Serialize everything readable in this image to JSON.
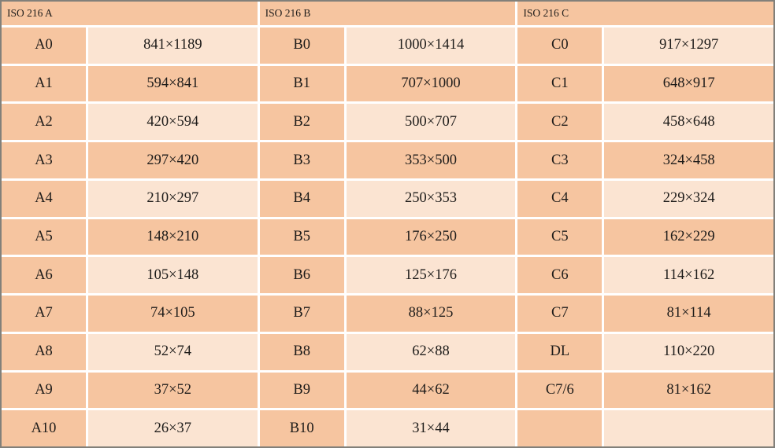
{
  "colors": {
    "cell_dark": "#f6c5a0",
    "cell_light": "#fbe4d2",
    "gap": "#ffffff",
    "outer_border": "#82807a",
    "text": "#1e1c1a"
  },
  "chart_data": {
    "type": "table",
    "groups": [
      {
        "header": "ISO 216 A",
        "rows": [
          {
            "label": "A0",
            "size": "841×1189"
          },
          {
            "label": "A1",
            "size": "594×841"
          },
          {
            "label": "A2",
            "size": "420×594"
          },
          {
            "label": "A3",
            "size": "297×420"
          },
          {
            "label": "A4",
            "size": "210×297"
          },
          {
            "label": "A5",
            "size": "148×210"
          },
          {
            "label": "A6",
            "size": "105×148"
          },
          {
            "label": "A7",
            "size": "74×105"
          },
          {
            "label": "A8",
            "size": "52×74"
          },
          {
            "label": "A9",
            "size": "37×52"
          },
          {
            "label": "A10",
            "size": "26×37"
          }
        ]
      },
      {
        "header": "ISO 216 B",
        "rows": [
          {
            "label": "B0",
            "size": "1000×1414"
          },
          {
            "label": "B1",
            "size": "707×1000"
          },
          {
            "label": "B2",
            "size": "500×707"
          },
          {
            "label": "B3",
            "size": "353×500"
          },
          {
            "label": "B4",
            "size": "250×353"
          },
          {
            "label": "B5",
            "size": "176×250"
          },
          {
            "label": "B6",
            "size": "125×176"
          },
          {
            "label": "B7",
            "size": "88×125"
          },
          {
            "label": "B8",
            "size": "62×88"
          },
          {
            "label": "B9",
            "size": "44×62"
          },
          {
            "label": "B10",
            "size": "31×44"
          }
        ]
      },
      {
        "header": "ISO 216 C",
        "rows": [
          {
            "label": "C0",
            "size": "917×1297"
          },
          {
            "label": "C1",
            "size": "648×917"
          },
          {
            "label": "C2",
            "size": "458×648"
          },
          {
            "label": "C3",
            "size": "324×458"
          },
          {
            "label": "C4",
            "size": "229×324"
          },
          {
            "label": "C5",
            "size": "162×229"
          },
          {
            "label": "C6",
            "size": "114×162"
          },
          {
            "label": "C7",
            "size": "81×114"
          },
          {
            "label": "DL",
            "size": "110×220"
          },
          {
            "label": "C7/6",
            "size": "81×162"
          },
          {
            "label": "",
            "size": ""
          }
        ]
      }
    ]
  }
}
